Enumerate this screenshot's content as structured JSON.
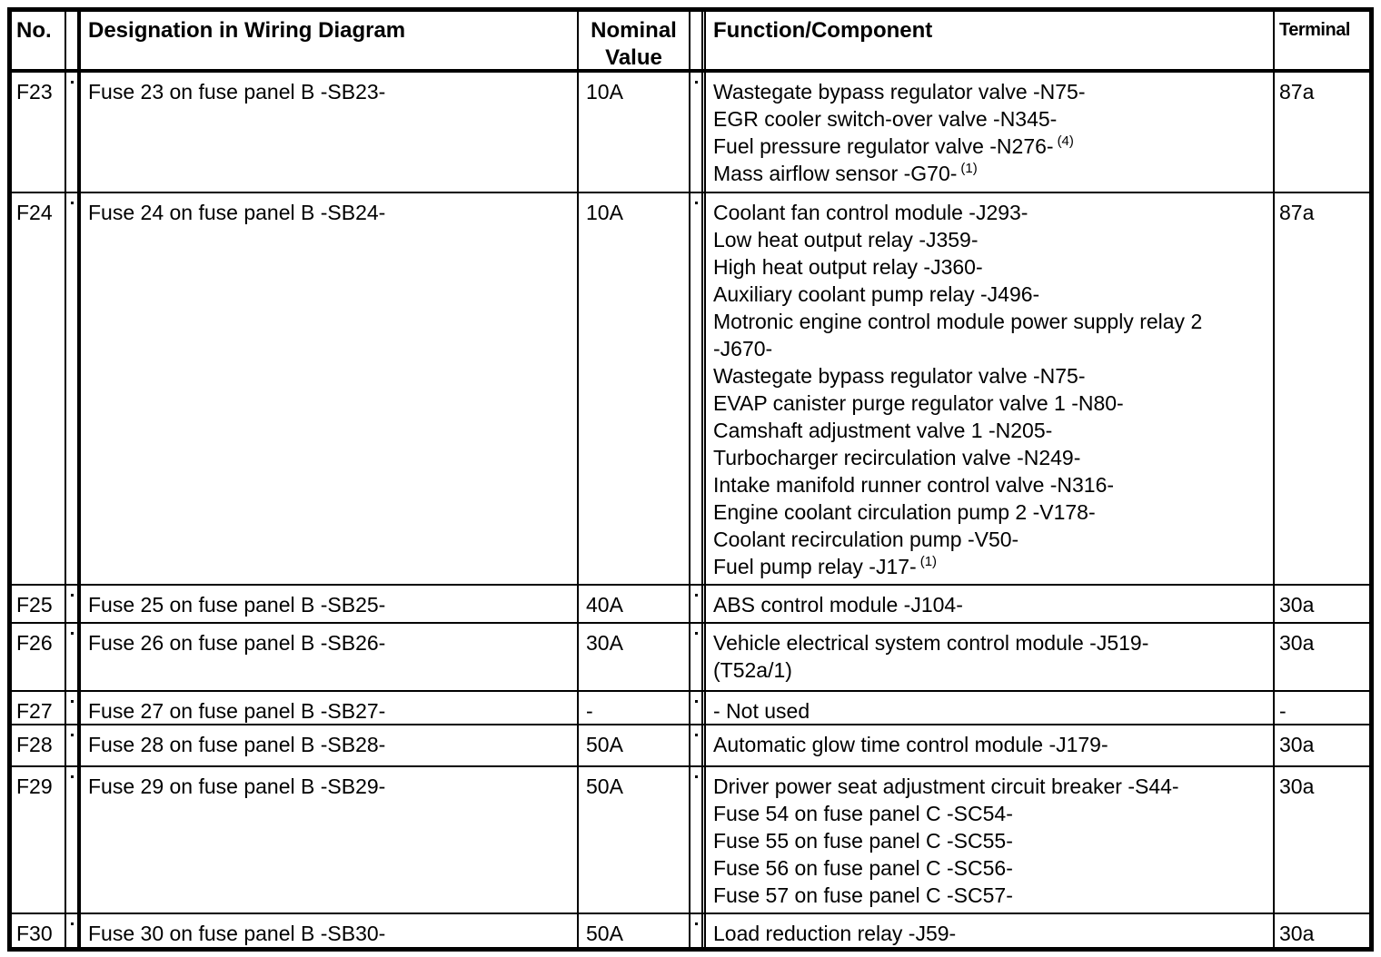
{
  "table": {
    "headers": {
      "no": "No.",
      "designation": "Designation in Wiring Diagram",
      "nominal_value": "Nominal Value",
      "function_component": "Function/Component",
      "terminal": "Terminal"
    },
    "rows": [
      {
        "no": "F23",
        "designation": "Fuse 23 on fuse panel B -SB23-",
        "nominal_value": "10A",
        "functions": [
          {
            "text": "Wastegate bypass regulator valve -N75-"
          },
          {
            "text": "EGR cooler switch-over valve -N345-"
          },
          {
            "text": "Fuel pressure regulator valve -N276-",
            "footnote": "(4)"
          },
          {
            "text": "Mass airflow sensor -G70-",
            "footnote": "(1)"
          }
        ],
        "terminal": "87a"
      },
      {
        "no": "F24",
        "designation": "Fuse 24 on fuse panel B -SB24-",
        "nominal_value": "10A",
        "functions": [
          {
            "text": "Coolant fan control module -J293-"
          },
          {
            "text": "Low heat output relay -J359-"
          },
          {
            "text": "High heat output relay -J360-"
          },
          {
            "text": "Auxiliary coolant pump relay -J496-"
          },
          {
            "text": "Motronic engine control module power supply relay 2"
          },
          {
            "text": "-J670-"
          },
          {
            "text": "Wastegate bypass regulator valve -N75-"
          },
          {
            "text": "EVAP canister purge regulator valve 1 -N80-"
          },
          {
            "text": "Camshaft adjustment valve 1 -N205-"
          },
          {
            "text": "Turbocharger recirculation valve -N249-"
          },
          {
            "text": "Intake manifold runner control valve -N316-"
          },
          {
            "text": "Engine coolant circulation pump 2 -V178-"
          },
          {
            "text": "Coolant recirculation pump -V50-"
          },
          {
            "text": "Fuel pump relay -J17-",
            "footnote": "(1)"
          }
        ],
        "terminal": "87a"
      },
      {
        "no": "F25",
        "designation": "Fuse 25 on fuse panel B -SB25-",
        "nominal_value": "40A",
        "functions": [
          {
            "text": "ABS control module -J104-"
          }
        ],
        "terminal": "30a"
      },
      {
        "no": "F26",
        "designation": "Fuse 26 on fuse panel B -SB26-",
        "nominal_value": "30A",
        "functions": [
          {
            "text": "Vehicle electrical system control module -J519-"
          },
          {
            "text": "(T52a/1)"
          }
        ],
        "terminal": "30a"
      },
      {
        "no": "F27",
        "designation": "Fuse 27 on fuse panel B -SB27-",
        "nominal_value": "-",
        "functions": [
          {
            "text": "- Not used"
          }
        ],
        "terminal": "-"
      },
      {
        "no": "F28",
        "designation": "Fuse 28 on fuse panel B -SB28-",
        "nominal_value": "50A",
        "functions": [
          {
            "text": "Automatic glow time control module -J179-"
          }
        ],
        "terminal": "30a"
      },
      {
        "no": "F29",
        "designation": "Fuse 29 on fuse panel B -SB29-",
        "nominal_value": "50A",
        "functions": [
          {
            "text": "Driver power seat adjustment circuit breaker -S44-"
          },
          {
            "text": "Fuse 54 on fuse panel C -SC54-"
          },
          {
            "text": "Fuse 55 on fuse panel C -SC55-"
          },
          {
            "text": "Fuse 56 on fuse panel C -SC56-"
          },
          {
            "text": "Fuse 57 on fuse panel C -SC57-"
          }
        ],
        "terminal": "30a"
      },
      {
        "no": "F30",
        "designation": "Fuse 30 on fuse panel B -SB30-",
        "nominal_value": "50A",
        "functions": [
          {
            "text": "Load reduction relay -J59-"
          }
        ],
        "terminal": "30a"
      }
    ]
  }
}
